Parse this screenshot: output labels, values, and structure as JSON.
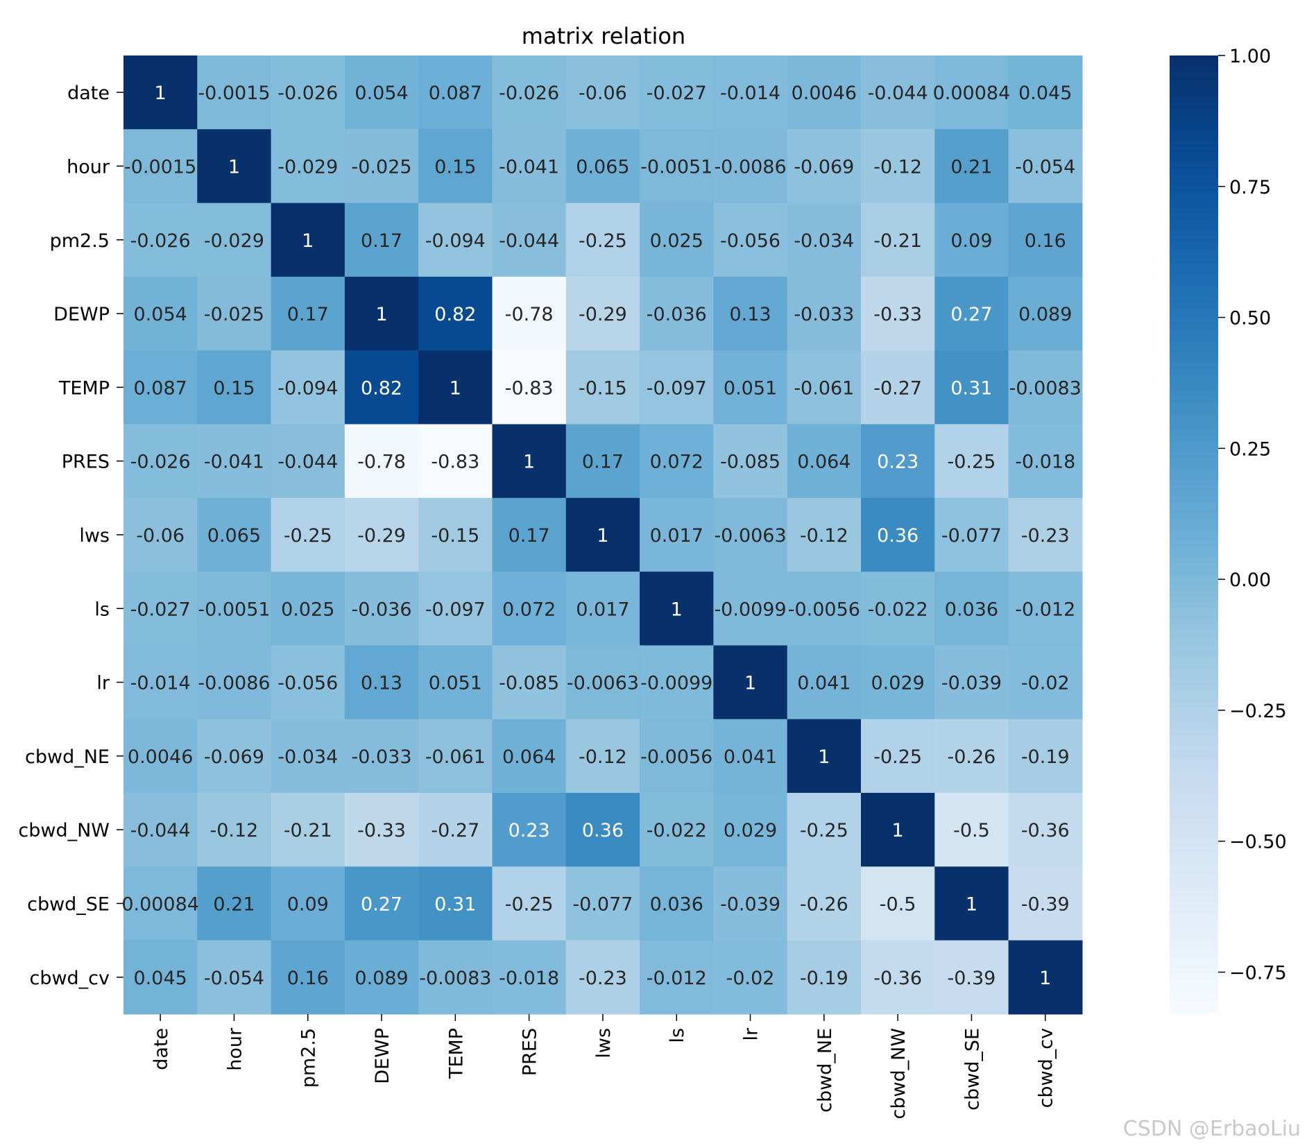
{
  "chart_data": {
    "type": "heatmap",
    "title": "matrix relation",
    "colormap": "Blues",
    "xlabel": "",
    "ylabel": "",
    "labels": [
      "date",
      "hour",
      "pm2.5",
      "DEWP",
      "TEMP",
      "PRES",
      "lws",
      "ls",
      "lr",
      "cbwd_NE",
      "cbwd_NW",
      "cbwd_SE",
      "cbwd_cv"
    ],
    "matrix": [
      [
        1,
        -0.0015,
        -0.026,
        0.054,
        0.087,
        -0.026,
        -0.06,
        -0.027,
        -0.014,
        0.0046,
        -0.044,
        0.00084,
        0.045
      ],
      [
        -0.0015,
        1,
        -0.029,
        -0.025,
        0.15,
        -0.041,
        0.065,
        -0.0051,
        -0.0086,
        -0.069,
        -0.12,
        0.21,
        -0.054
      ],
      [
        -0.026,
        -0.029,
        1,
        0.17,
        -0.094,
        -0.044,
        -0.25,
        0.025,
        -0.056,
        -0.034,
        -0.21,
        0.09,
        0.16
      ],
      [
        0.054,
        -0.025,
        0.17,
        1,
        0.82,
        -0.78,
        -0.29,
        -0.036,
        0.13,
        -0.033,
        -0.33,
        0.27,
        0.089
      ],
      [
        0.087,
        0.15,
        -0.094,
        0.82,
        1,
        -0.83,
        -0.15,
        -0.097,
        0.051,
        -0.061,
        -0.27,
        0.31,
        -0.0083
      ],
      [
        -0.026,
        -0.041,
        -0.044,
        -0.78,
        -0.83,
        1,
        0.17,
        0.072,
        -0.085,
        0.064,
        0.23,
        -0.25,
        -0.018
      ],
      [
        -0.06,
        0.065,
        -0.25,
        -0.29,
        -0.15,
        0.17,
        1,
        0.017,
        -0.0063,
        -0.12,
        0.36,
        -0.077,
        -0.23
      ],
      [
        -0.027,
        -0.0051,
        0.025,
        -0.036,
        -0.097,
        0.072,
        0.017,
        1,
        -0.0099,
        -0.0056,
        -0.022,
        0.036,
        -0.012
      ],
      [
        -0.014,
        -0.0086,
        -0.056,
        0.13,
        0.051,
        -0.085,
        -0.0063,
        -0.0099,
        1,
        0.041,
        0.029,
        -0.039,
        -0.02
      ],
      [
        0.0046,
        -0.069,
        -0.034,
        -0.033,
        -0.061,
        0.064,
        -0.12,
        -0.0056,
        0.041,
        1,
        -0.25,
        -0.26,
        -0.19
      ],
      [
        -0.044,
        -0.12,
        -0.21,
        -0.33,
        -0.27,
        0.23,
        0.36,
        -0.022,
        0.029,
        -0.25,
        1,
        -0.5,
        -0.36
      ],
      [
        0.00084,
        0.21,
        0.09,
        0.27,
        0.31,
        -0.25,
        -0.077,
        0.036,
        -0.039,
        -0.26,
        -0.5,
        1,
        -0.39
      ],
      [
        0.045,
        -0.054,
        0.16,
        0.089,
        -0.0083,
        -0.018,
        -0.23,
        -0.012,
        -0.02,
        -0.19,
        -0.36,
        -0.39,
        1
      ]
    ],
    "vmin": -0.83,
    "vmax": 1.0,
    "colorbar_ticks": [
      "1.00",
      "0.75",
      "0.50",
      "0.25",
      "0.00",
      "−0.25",
      "−0.50",
      "−0.75"
    ],
    "colorbar_tick_values": [
      1.0,
      0.75,
      0.5,
      0.25,
      0.0,
      -0.25,
      -0.5,
      -0.75
    ]
  },
  "watermark": "CSDN @ErbaoLiu"
}
